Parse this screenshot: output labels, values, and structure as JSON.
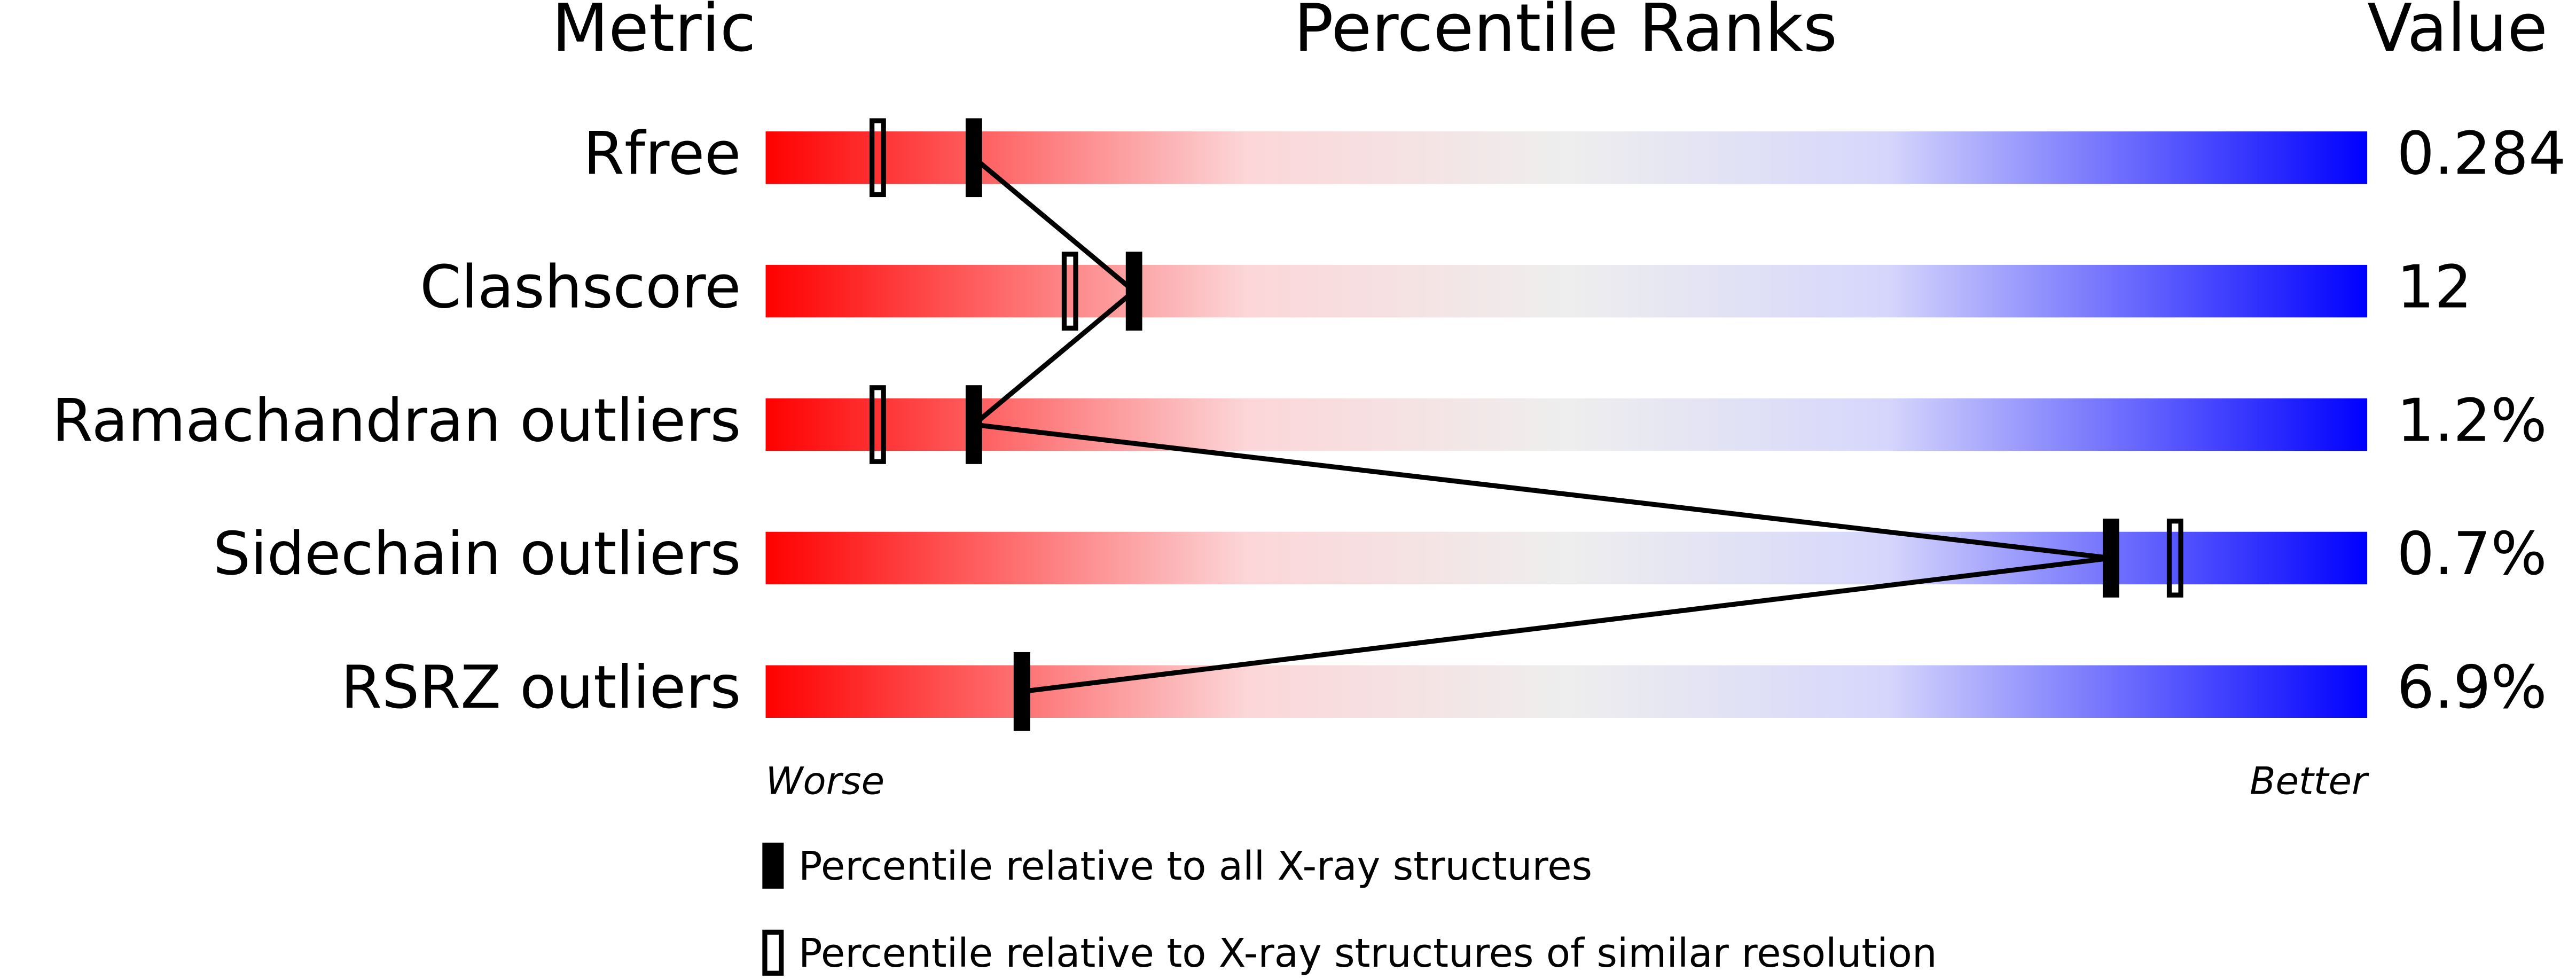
{
  "chart_data": {
    "type": "percentile_slider",
    "headers": [
      "Metric",
      "Percentile Ranks",
      "Value"
    ],
    "categories": [
      "Rfree",
      "Clashscore",
      "Ramachandran outliers",
      "Sidechain outliers",
      "RSRZ outliers"
    ],
    "metric_values": [
      "0.284",
      "12",
      "1.2%",
      "0.7%",
      "6.9%"
    ],
    "series": [
      {
        "name": "Percentile relative to all X-ray structures",
        "style": "filled",
        "color": "#000000",
        "values": [
          13,
          23,
          13,
          84,
          16
        ]
      },
      {
        "name": "Percentile relative to X-ray structures of similar resolution",
        "style": "open",
        "color": "#000000",
        "values": [
          7,
          19,
          7,
          88,
          16
        ]
      }
    ],
    "xlim": [
      0,
      100
    ],
    "worse_label": "Worse",
    "better_label": "Better"
  }
}
